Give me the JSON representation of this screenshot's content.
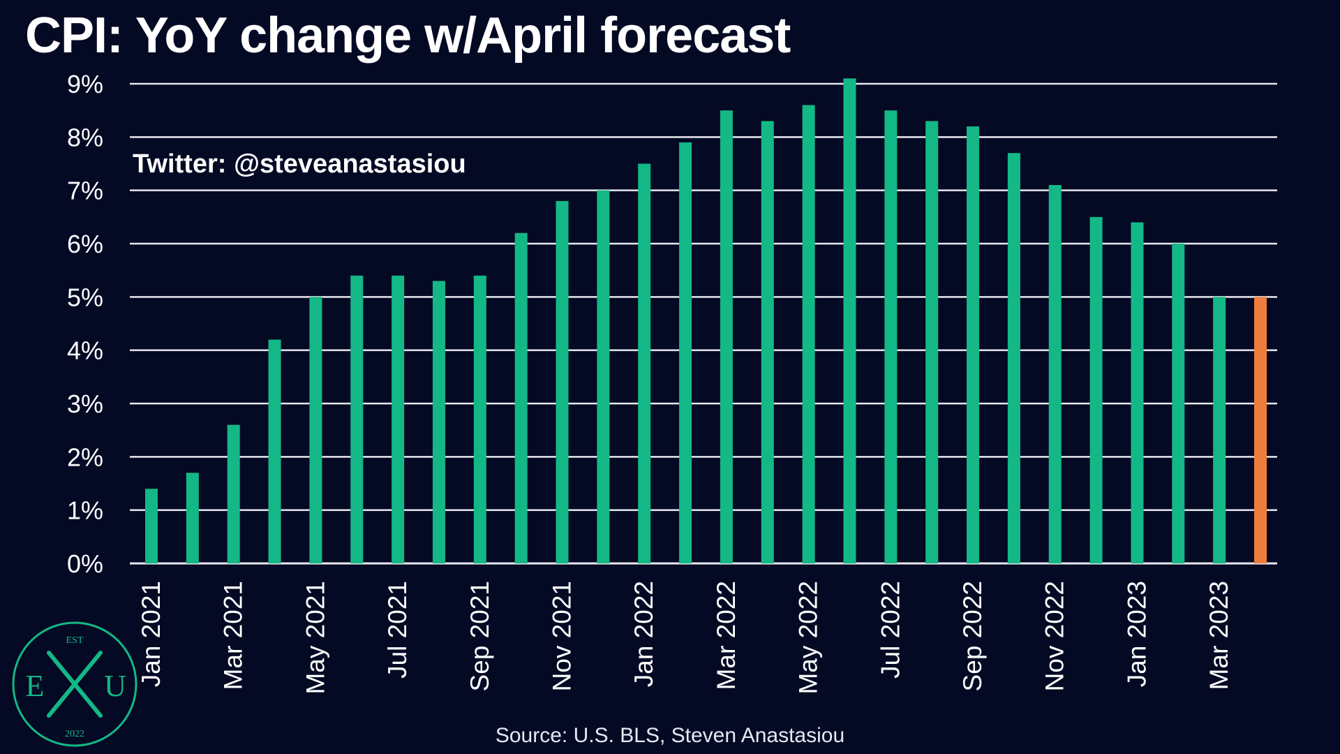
{
  "title": "CPI: YoY change w/April forecast",
  "watermark": "Twitter: @steveanastasiou",
  "source": "Source: U.S. BLS, Steven Anastasiou",
  "logo": {
    "top": "EST",
    "left": "E",
    "right": "U",
    "bottom": "2022"
  },
  "colors": {
    "background": "#050a24",
    "actual": "#13b886",
    "forecast": "#ee7d3c",
    "grid": "#e8e8ee"
  },
  "chart_data": {
    "type": "bar",
    "title": "CPI: YoY change w/April forecast",
    "xlabel": "",
    "ylabel": "",
    "ylim": [
      0,
      9
    ],
    "yticks": [
      "0%",
      "1%",
      "2%",
      "3%",
      "4%",
      "5%",
      "6%",
      "7%",
      "8%",
      "9%"
    ],
    "grid": true,
    "categories": [
      "Jan 2021",
      "Feb 2021",
      "Mar 2021",
      "Apr 2021",
      "May 2021",
      "Jun 2021",
      "Jul 2021",
      "Aug 2021",
      "Sep 2021",
      "Oct 2021",
      "Nov 2021",
      "Dec 2021",
      "Jan 2022",
      "Feb 2022",
      "Mar 2022",
      "Apr 2022",
      "May 2022",
      "Jun 2022",
      "Jul 2022",
      "Aug 2022",
      "Sep 2022",
      "Oct 2022",
      "Nov 2022",
      "Dec 2022",
      "Jan 2023",
      "Feb 2023",
      "Mar 2023",
      "Apr 2023"
    ],
    "xtick_labels": [
      "Jan 2021",
      "",
      "Mar 2021",
      "",
      "May 2021",
      "",
      "Jul 2021",
      "",
      "Sep 2021",
      "",
      "Nov 2021",
      "",
      "Jan 2022",
      "",
      "Mar 2022",
      "",
      "May 2022",
      "",
      "Jul 2022",
      "",
      "Sep 2022",
      "",
      "Nov 2022",
      "",
      "Jan 2023",
      "",
      "Mar 2023",
      ""
    ],
    "values": [
      1.4,
      1.7,
      2.6,
      4.2,
      5.0,
      5.4,
      5.4,
      5.3,
      5.4,
      6.2,
      6.8,
      7.0,
      7.5,
      7.9,
      8.5,
      8.3,
      8.6,
      9.1,
      8.5,
      8.3,
      8.2,
      7.7,
      7.1,
      6.5,
      6.4,
      6.0,
      5.0,
      5.0
    ],
    "forecast": [
      false,
      false,
      false,
      false,
      false,
      false,
      false,
      false,
      false,
      false,
      false,
      false,
      false,
      false,
      false,
      false,
      false,
      false,
      false,
      false,
      false,
      false,
      false,
      false,
      false,
      false,
      false,
      true
    ]
  }
}
